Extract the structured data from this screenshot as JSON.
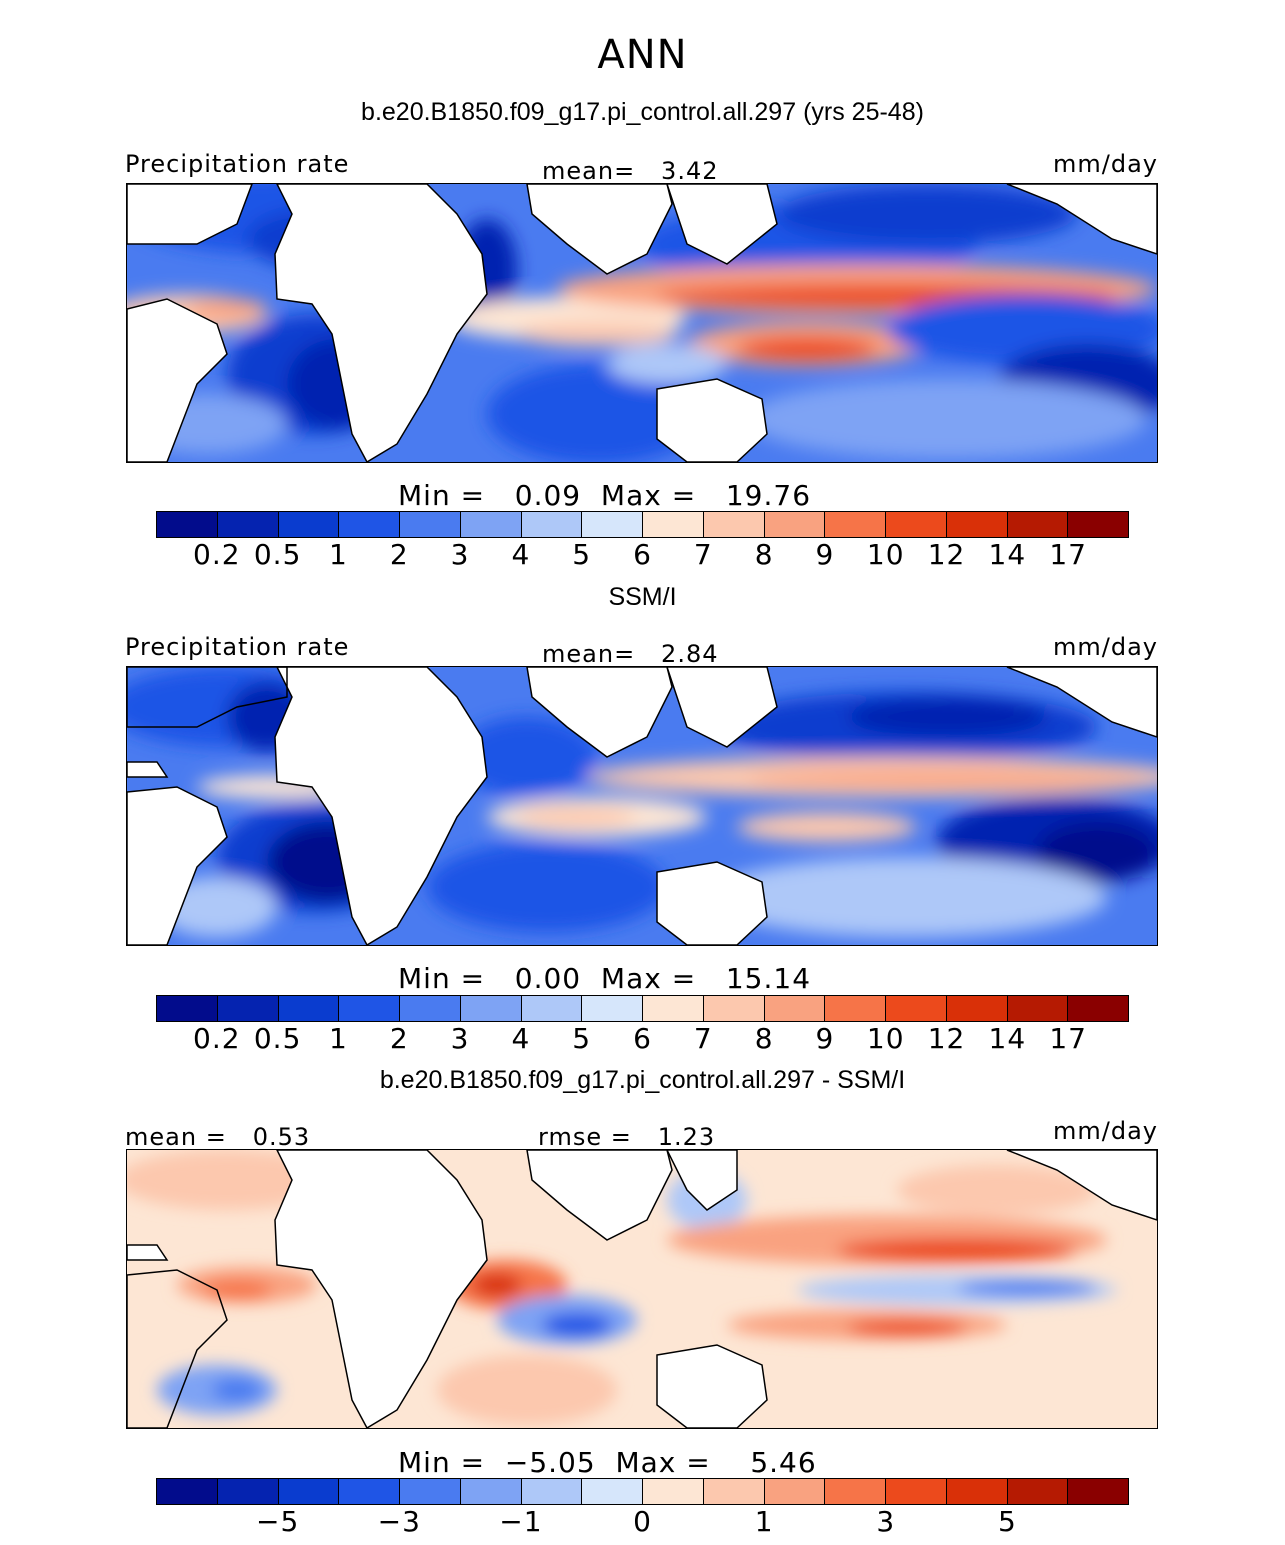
{
  "figure": {
    "season": "ANN"
  },
  "panels": [
    {
      "title": "b.e20.B1850.f09_g17.pi_control.all.297 (yrs 25-48)",
      "left_label": "Precipitation rate",
      "center_label": "mean=   3.42",
      "right_label": "mm/day",
      "min_label": "Min =",
      "min_value": "0.09",
      "max_label": "Max =",
      "max_value": "19.76"
    },
    {
      "title": "SSM/I",
      "left_label": "Precipitation rate",
      "center_label": "mean=   2.84",
      "right_label": "mm/day",
      "min_label": "Min =",
      "min_value": "0.00",
      "max_label": "Max =",
      "max_value": "15.14"
    },
    {
      "title": "b.e20.B1850.f09_g17.pi_control.all.297 - SSM/I",
      "left_label": "mean =   0.53",
      "center_label": "rmse =   1.23",
      "right_label": "mm/day",
      "min_label": "Min =",
      "min_value": "−5.05",
      "max_label": "Max =",
      "max_value": "5.46"
    }
  ],
  "colorbars": {
    "abs_colors": [
      "#020c8c",
      "#0523b0",
      "#0a3ccf",
      "#1f55e6",
      "#4a7bf0",
      "#7ea3f4",
      "#aec8f8",
      "#d6e6fb",
      "#fde6d4",
      "#fcc8ae",
      "#f9a280",
      "#f67448",
      "#ec4a1c",
      "#d93008",
      "#b51a02",
      "#8a0000"
    ],
    "abs_ticks": [
      "0.2",
      "0.5",
      "1",
      "2",
      "3",
      "4",
      "5",
      "6",
      "7",
      "8",
      "9",
      "10",
      "12",
      "14",
      "17"
    ],
    "diff_colors": [
      "#020c8c",
      "#0523b0",
      "#0a3ccf",
      "#1f55e6",
      "#4a7bf0",
      "#7ea3f4",
      "#aec8f8",
      "#d6e6fb",
      "#fde6d4",
      "#fcc8ae",
      "#f9a280",
      "#f67448",
      "#ec4a1c",
      "#d93008",
      "#b51a02",
      "#8a0000"
    ],
    "diff_ticks": [
      "−5",
      "−3",
      "−1",
      "0",
      "1",
      "3",
      "5"
    ]
  }
}
